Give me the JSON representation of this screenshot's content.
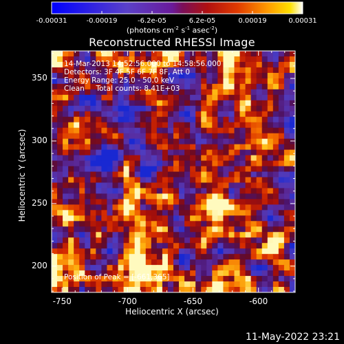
{
  "chart_data": {
    "type": "heatmap",
    "title": "Reconstructed RHESSI Image",
    "xlabel": "Heliocentric X (arcsec)",
    "ylabel": "Heliocentric Y (arcsec)",
    "xlim": [
      -758,
      -572
    ],
    "ylim": [
      179,
      372
    ],
    "x_ticks": [
      -750,
      -700,
      -650,
      -600
    ],
    "y_ticks": [
      200,
      250,
      300,
      350
    ],
    "colorbar": {
      "min": -0.00031,
      "max": 0.00031,
      "ticks": [
        "-0.00031",
        "-0.00019",
        "-6.2e-05",
        "6.2e-05",
        "0.00019",
        "0.00031"
      ],
      "label_main": "(photons cm",
      "label_exp1": "-2",
      "label_mid": " s",
      "label_exp2": "-1",
      "label_mid2": " asec",
      "label_exp3": "-2",
      "label_end": ")"
    },
    "annotations": [
      "14-Mar-2013 14:52:56.000 to 14:58:56.000",
      "Detectors: 3F 4F 5F 6F 7F 8F, Att 0",
      "Energy Range: 25.0 - 50.0 keV",
      "Clean     Total counts: 8.41E+03"
    ],
    "peak_label": "Position of Peak = [-661,365]",
    "peak": [
      -661,
      365
    ]
  },
  "timestamp": "11-May-2022 23:21"
}
